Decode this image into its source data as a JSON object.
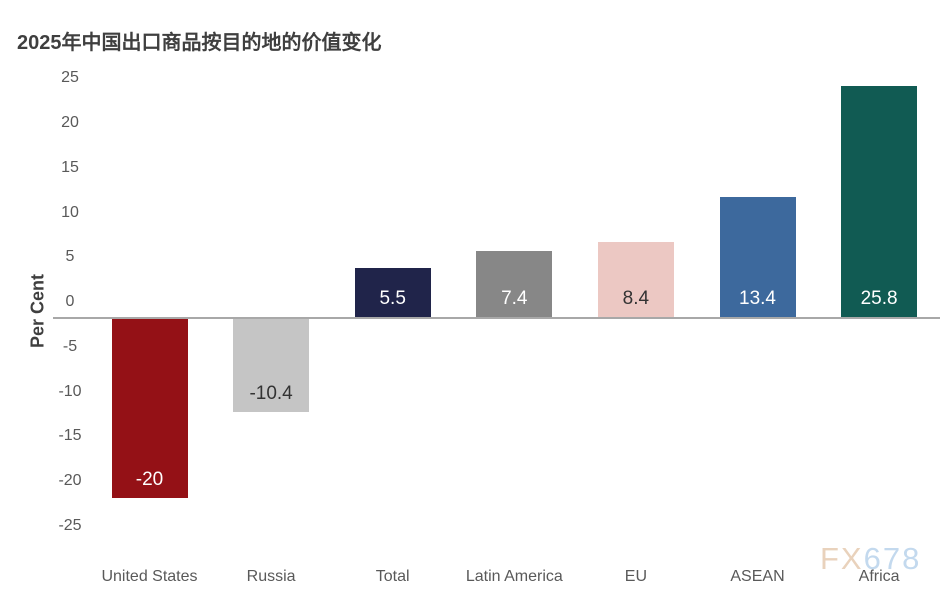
{
  "title": "2025年中国出口商品按目的地的价值变化",
  "watermark": {
    "part1": "FX",
    "part2": "678"
  },
  "colors": {
    "title_text": "#3f3f3f",
    "tick_text": "#595959",
    "axis_line": "#a8a8a8",
    "watermark_fx": "#e9d2bc",
    "watermark_678": "#c3d9ee"
  },
  "chart_data": {
    "type": "bar",
    "title": "2025年中国出口商品按目的地的价值变化",
    "xlabel": "",
    "ylabel": "Per Cent",
    "ylim": [
      -25,
      25
    ],
    "yticks": [
      25,
      20,
      15,
      10,
      5,
      0,
      -5,
      -10,
      -15,
      -20,
      -25
    ],
    "grid": false,
    "legend": false,
    "categories": [
      "United States",
      "Russia",
      "Total",
      "Latin America",
      "EU",
      "ASEAN",
      "Africa"
    ],
    "values": [
      -20,
      -10.4,
      5.5,
      7.4,
      8.4,
      13.4,
      25.8
    ],
    "value_labels": [
      "-20",
      "-10.4",
      "5.5",
      "7.4",
      "8.4",
      "13.4",
      "25.8"
    ],
    "bar_colors": [
      "#941116",
      "#c5c5c5",
      "#20244a",
      "#878787",
      "#ecc8c3",
      "#3d699d",
      "#115b53"
    ],
    "value_label_colors": [
      "#ffffff",
      "#333333",
      "#ffffff",
      "#ffffff",
      "#333333",
      "#ffffff",
      "#ffffff"
    ]
  }
}
